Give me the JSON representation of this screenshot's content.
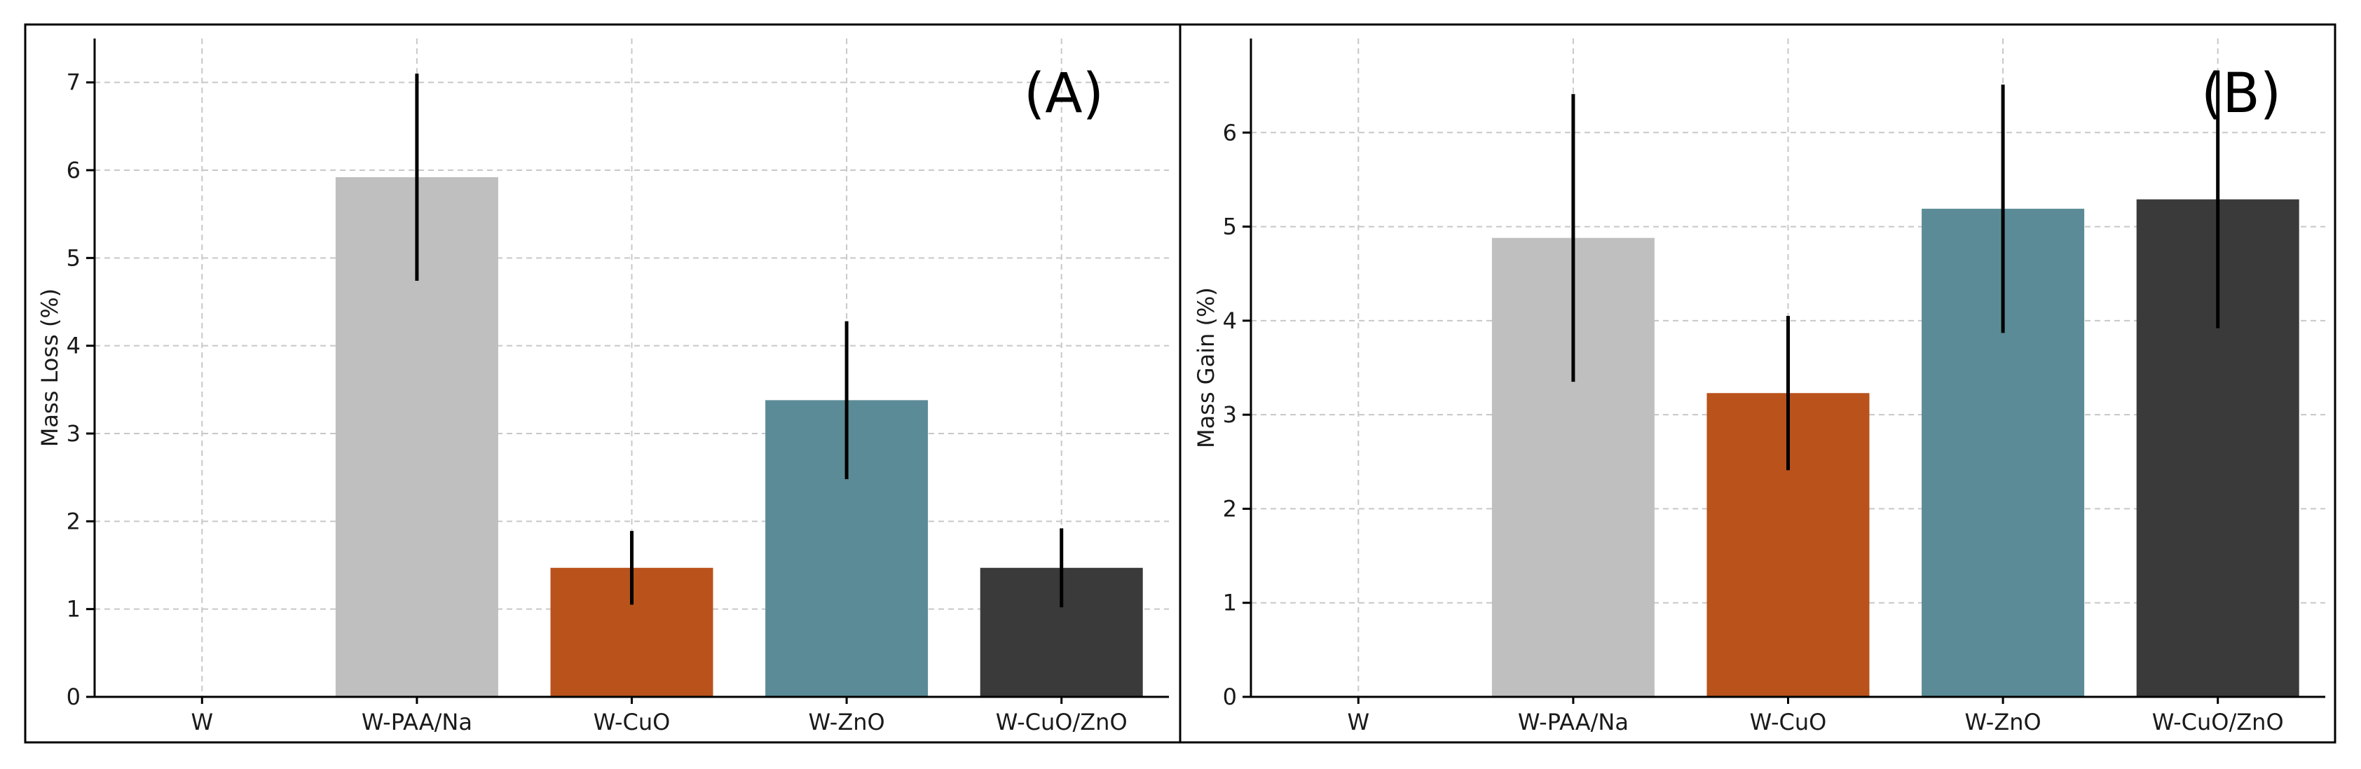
{
  "chart_data": [
    {
      "type": "bar",
      "panel_label": "(A)",
      "ylabel": "Mass Loss (%)",
      "xlabel": "",
      "categories": [
        "W",
        "W-PAA/Na",
        "W-CuO",
        "W-ZnO",
        "W-CuO/ZnO"
      ],
      "values": [
        0,
        5.92,
        1.47,
        3.38,
        1.47
      ],
      "errors": [
        0,
        1.18,
        0.42,
        0.9,
        0.45
      ],
      "colors": [
        "#bfbfbf",
        "#bfbfbf",
        "#b9521b",
        "#5b8b97",
        "#3a3a3a"
      ],
      "ylim": [
        0,
        7.5
      ],
      "yticks": [
        0,
        1,
        2,
        3,
        4,
        5,
        6,
        7
      ],
      "grid": true
    },
    {
      "type": "bar",
      "panel_label": "(B)",
      "ylabel": "Mass Gain (%)",
      "xlabel": "",
      "categories": [
        "W",
        "W-PAA/Na",
        "W-CuO",
        "W-ZnO",
        "W-CuO/ZnO"
      ],
      "values": [
        0,
        4.88,
        3.23,
        5.19,
        5.29
      ],
      "errors": [
        0,
        1.53,
        0.82,
        1.32,
        1.37
      ],
      "colors": [
        "#bfbfbf",
        "#bfbfbf",
        "#b9521b",
        "#5b8b97",
        "#3a3a3a"
      ],
      "ylim": [
        0,
        7.0
      ],
      "yticks": [
        0,
        1,
        2,
        3,
        4,
        5,
        6
      ],
      "grid": true
    }
  ]
}
